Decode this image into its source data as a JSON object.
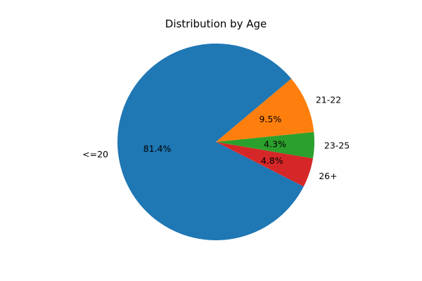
{
  "chart_data": {
    "type": "pie",
    "title": "Distribution by Age",
    "start_angle_deg": 40,
    "direction": "counterclockwise",
    "slices": [
      {
        "label": "<=20",
        "value": 81.4,
        "pct_label": "81.4%",
        "color": "#1f77b4"
      },
      {
        "label": "26+",
        "value": 4.8,
        "pct_label": "4.8%",
        "color": "#d62728"
      },
      {
        "label": "23-25",
        "value": 4.3,
        "pct_label": "4.3%",
        "color": "#2ca02c"
      },
      {
        "label": "21-22",
        "value": 9.5,
        "pct_label": "9.5%",
        "color": "#ff7f0e"
      }
    ]
  }
}
